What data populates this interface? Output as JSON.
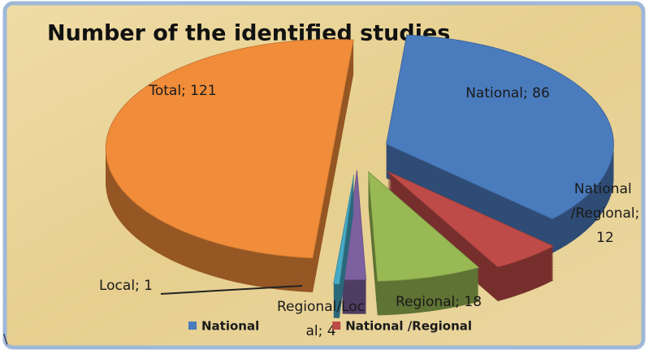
{
  "chart_data": {
    "type": "pie3d",
    "title": "Number of the identified studies",
    "categories": [
      "National",
      "National /Regional",
      "Regional",
      "Regional/Local",
      "Local",
      "Total"
    ],
    "values": [
      86,
      12,
      18,
      4,
      1,
      121
    ],
    "value_labels": [
      "National; 86",
      "National /Regional; 12",
      "Regional; 18",
      "Regional/Local; 4",
      "Local; 1",
      "Total; 121"
    ],
    "colors": [
      "#4a7bbd",
      "#be4b48",
      "#98b954",
      "#7d60a0",
      "#46aac5",
      "#f08c3a"
    ],
    "legend": [
      "National",
      "National /Regional"
    ],
    "annotation": "\\"
  }
}
